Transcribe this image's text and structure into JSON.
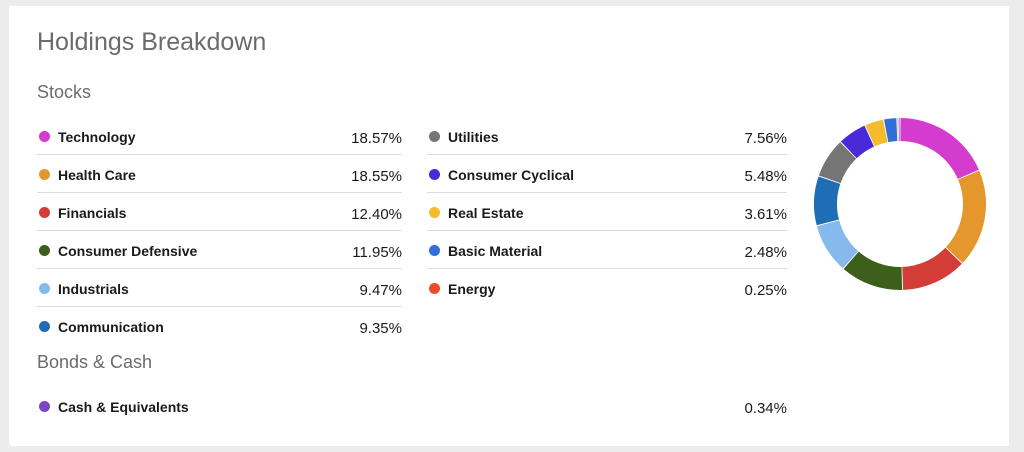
{
  "title": "Holdings Breakdown",
  "sections": {
    "stocks": "Stocks",
    "bonds": "Bonds & Cash"
  },
  "stocks_left": [
    {
      "label": "Technology",
      "value": "18.57%",
      "color": "#d43ccf"
    },
    {
      "label": "Health Care",
      "value": "18.55%",
      "color": "#e5962d"
    },
    {
      "label": "Financials",
      "value": "12.40%",
      "color": "#d23d37"
    },
    {
      "label": "Consumer Defensive",
      "value": "11.95%",
      "color": "#3e5f1c"
    },
    {
      "label": "Industrials",
      "value": "9.47%",
      "color": "#86b9ec"
    },
    {
      "label": "Communication",
      "value": "9.35%",
      "color": "#1f6db5"
    }
  ],
  "stocks_right": [
    {
      "label": "Utilities",
      "value": "7.56%",
      "color": "#757575"
    },
    {
      "label": "Consumer Cyclical",
      "value": "5.48%",
      "color": "#4a2ad8"
    },
    {
      "label": "Real Estate",
      "value": "3.61%",
      "color": "#f5bb2d"
    },
    {
      "label": "Basic Material",
      "value": "2.48%",
      "color": "#2f6fd9"
    },
    {
      "label": "Energy",
      "value": "0.25%",
      "color": "#ee4b28"
    }
  ],
  "bonds_cash": [
    {
      "label": "Cash & Equivalents",
      "value": "0.34%",
      "color": "#7b45c4"
    }
  ],
  "chart_data": {
    "type": "pie",
    "style": "donut",
    "categories": [
      "Technology",
      "Health Care",
      "Financials",
      "Consumer Defensive",
      "Industrials",
      "Communication",
      "Utilities",
      "Consumer Cyclical",
      "Real Estate",
      "Basic Material",
      "Energy",
      "Cash & Equivalents"
    ],
    "values": [
      18.57,
      18.55,
      12.4,
      11.95,
      9.47,
      9.35,
      7.56,
      5.48,
      3.61,
      2.48,
      0.25,
      0.34
    ],
    "colors": [
      "#d43ccf",
      "#e5962d",
      "#d23d37",
      "#3e5f1c",
      "#86b9ec",
      "#1f6db5",
      "#757575",
      "#4a2ad8",
      "#f5bb2d",
      "#2f6fd9",
      "#ee4b28",
      "#7b45c4"
    ]
  }
}
